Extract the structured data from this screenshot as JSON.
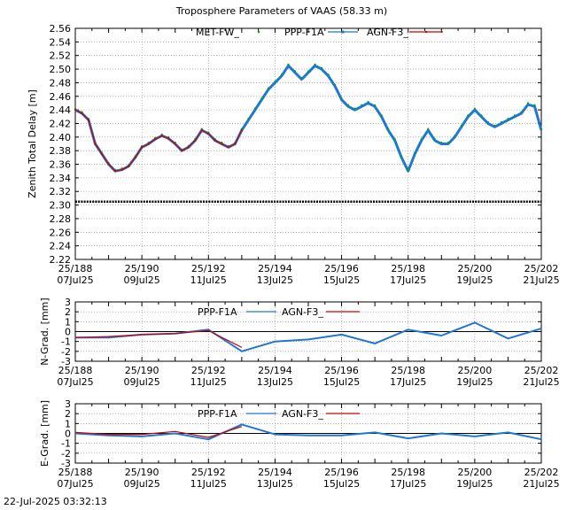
{
  "title": "Troposphere Parameters of VAAS (58.33 m)",
  "timestamp": "22-Jul-2025 03:32:13",
  "colors": {
    "met": "#00aa00",
    "ppp": "#1f77d4",
    "agn": "#cc0000",
    "grid": "#888888"
  },
  "chart_data": [
    {
      "type": "line",
      "id": "ztd",
      "ylabel": "Zenith Total Delay [m]",
      "xlim": [
        188,
        202
      ],
      "ylim": [
        2.22,
        2.56
      ],
      "yticks": [
        "2.56",
        "2.54",
        "2.52",
        "2.50",
        "2.48",
        "2.46",
        "2.44",
        "2.42",
        "2.40",
        "2.38",
        "2.36",
        "2.34",
        "2.32",
        "2.30",
        "2.28",
        "2.26",
        "2.24",
        "2.22"
      ],
      "xticks": [
        {
          "x": 188,
          "top": "25/188",
          "bottom": "07Jul25"
        },
        {
          "x": 190,
          "top": "25/190",
          "bottom": "09Jul25"
        },
        {
          "x": 192,
          "top": "25/192",
          "bottom": "11Jul25"
        },
        {
          "x": 194,
          "top": "25/194",
          "bottom": "13Jul25"
        },
        {
          "x": 196,
          "top": "25/196",
          "bottom": "15Jul25"
        },
        {
          "x": 198,
          "top": "25/198",
          "bottom": "17Jul25"
        },
        {
          "x": 200,
          "top": "25/200",
          "bottom": "19Jul25"
        },
        {
          "x": 202,
          "top": "25/202",
          "bottom": "21Jul25"
        }
      ],
      "legend": [
        "MET-FW_",
        "PPP-F1A",
        "AGN-F3_"
      ],
      "met_level": 2.305,
      "series": [
        {
          "name": "PPP-F1A",
          "points": [
            [
              188.0,
              2.44
            ],
            [
              188.2,
              2.435
            ],
            [
              188.4,
              2.425
            ],
            [
              188.6,
              2.39
            ],
            [
              188.8,
              2.375
            ],
            [
              189.0,
              2.36
            ],
            [
              189.2,
              2.35
            ],
            [
              189.4,
              2.352
            ],
            [
              189.6,
              2.357
            ],
            [
              189.8,
              2.37
            ],
            [
              190.0,
              2.385
            ],
            [
              190.2,
              2.39
            ],
            [
              190.4,
              2.397
            ],
            [
              190.6,
              2.402
            ],
            [
              190.8,
              2.398
            ],
            [
              191.0,
              2.39
            ],
            [
              191.2,
              2.38
            ],
            [
              191.4,
              2.385
            ],
            [
              191.6,
              2.395
            ],
            [
              191.8,
              2.41
            ],
            [
              192.0,
              2.405
            ],
            [
              192.2,
              2.395
            ],
            [
              192.4,
              2.39
            ],
            [
              192.6,
              2.385
            ],
            [
              192.8,
              2.39
            ],
            [
              193.0,
              2.41
            ],
            [
              193.2,
              2.425
            ],
            [
              193.4,
              2.44
            ],
            [
              193.6,
              2.455
            ],
            [
              193.8,
              2.47
            ],
            [
              194.0,
              2.48
            ],
            [
              194.2,
              2.49
            ],
            [
              194.4,
              2.505
            ],
            [
              194.6,
              2.495
            ],
            [
              194.8,
              2.485
            ],
            [
              195.0,
              2.495
            ],
            [
              195.2,
              2.505
            ],
            [
              195.4,
              2.5
            ],
            [
              195.6,
              2.49
            ],
            [
              195.8,
              2.475
            ],
            [
              196.0,
              2.455
            ],
            [
              196.2,
              2.445
            ],
            [
              196.4,
              2.44
            ],
            [
              196.6,
              2.445
            ],
            [
              196.8,
              2.45
            ],
            [
              197.0,
              2.445
            ],
            [
              197.2,
              2.43
            ],
            [
              197.4,
              2.41
            ],
            [
              197.6,
              2.395
            ],
            [
              197.8,
              2.37
            ],
            [
              198.0,
              2.35
            ],
            [
              198.2,
              2.375
            ],
            [
              198.4,
              2.395
            ],
            [
              198.6,
              2.41
            ],
            [
              198.8,
              2.395
            ],
            [
              199.0,
              2.39
            ],
            [
              199.2,
              2.39
            ],
            [
              199.4,
              2.4
            ],
            [
              199.6,
              2.415
            ],
            [
              199.8,
              2.43
            ],
            [
              200.0,
              2.44
            ],
            [
              200.2,
              2.43
            ],
            [
              200.4,
              2.42
            ],
            [
              200.6,
              2.415
            ],
            [
              200.8,
              2.42
            ],
            [
              201.0,
              2.425
            ],
            [
              201.2,
              2.43
            ],
            [
              201.4,
              2.435
            ],
            [
              201.6,
              2.448
            ],
            [
              201.8,
              2.445
            ],
            [
              202.0,
              2.41
            ]
          ]
        },
        {
          "name": "AGN-F3_",
          "points": [
            [
              188.0,
              2.44
            ],
            [
              188.2,
              2.435
            ],
            [
              188.4,
              2.425
            ],
            [
              188.6,
              2.39
            ],
            [
              188.8,
              2.375
            ],
            [
              189.0,
              2.36
            ],
            [
              189.2,
              2.35
            ],
            [
              189.4,
              2.352
            ],
            [
              189.6,
              2.357
            ],
            [
              189.8,
              2.37
            ],
            [
              190.0,
              2.385
            ],
            [
              190.2,
              2.39
            ],
            [
              190.4,
              2.397
            ],
            [
              190.6,
              2.402
            ],
            [
              190.8,
              2.398
            ],
            [
              191.0,
              2.39
            ],
            [
              191.2,
              2.38
            ],
            [
              191.4,
              2.385
            ],
            [
              191.6,
              2.395
            ],
            [
              191.8,
              2.41
            ],
            [
              192.0,
              2.405
            ],
            [
              192.2,
              2.395
            ],
            [
              192.4,
              2.39
            ],
            [
              192.6,
              2.385
            ],
            [
              192.8,
              2.39
            ],
            [
              193.0,
              2.41
            ]
          ]
        }
      ]
    },
    {
      "type": "line",
      "id": "ngrad",
      "ylabel": "N-Grad. [mm]",
      "xlim": [
        188,
        202
      ],
      "ylim": [
        -3,
        3
      ],
      "yticks": [
        "3",
        "2",
        "1",
        "0",
        "-1",
        "-2",
        "-3"
      ],
      "xticks": [
        {
          "x": 188,
          "top": "25/188",
          "bottom": "07Jul25"
        },
        {
          "x": 190,
          "top": "25/190",
          "bottom": "09Jul25"
        },
        {
          "x": 192,
          "top": "25/192",
          "bottom": "11Jul25"
        },
        {
          "x": 194,
          "top": "25/194",
          "bottom": "13Jul25"
        },
        {
          "x": 196,
          "top": "25/196",
          "bottom": "15Jul25"
        },
        {
          "x": 198,
          "top": "25/198",
          "bottom": "17Jul25"
        },
        {
          "x": 200,
          "top": "25/200",
          "bottom": "19Jul25"
        },
        {
          "x": 202,
          "top": "25/202",
          "bottom": "21Jul25"
        }
      ],
      "legend": [
        "PPP-F1A",
        "AGN-F3_"
      ],
      "series": [
        {
          "name": "PPP-F1A",
          "points": [
            [
              188,
              -0.6
            ],
            [
              189,
              -0.6
            ],
            [
              190,
              -0.3
            ],
            [
              191,
              -0.2
            ],
            [
              192,
              0.2
            ],
            [
              193,
              -2.0
            ],
            [
              194,
              -1.0
            ],
            [
              195,
              -0.8
            ],
            [
              196,
              -0.3
            ],
            [
              197,
              -1.2
            ],
            [
              198,
              0.2
            ],
            [
              199,
              -0.4
            ],
            [
              200,
              0.9
            ],
            [
              201,
              -0.7
            ],
            [
              202,
              0.3
            ]
          ]
        },
        {
          "name": "AGN-F3_",
          "points": [
            [
              188,
              -0.6
            ],
            [
              189,
              -0.5
            ],
            [
              190,
              -0.3
            ],
            [
              191,
              -0.2
            ],
            [
              192,
              0.1
            ],
            [
              193,
              -1.6
            ]
          ]
        }
      ]
    },
    {
      "type": "line",
      "id": "egrad",
      "ylabel": "E-Grad. [mm]",
      "xlim": [
        188,
        202
      ],
      "ylim": [
        -3,
        3
      ],
      "yticks": [
        "3",
        "2",
        "1",
        "0",
        "-1",
        "-2",
        "-3"
      ],
      "xticks": [
        {
          "x": 188,
          "top": "25/188",
          "bottom": "07Jul25"
        },
        {
          "x": 190,
          "top": "25/190",
          "bottom": "09Jul25"
        },
        {
          "x": 192,
          "top": "25/192",
          "bottom": "11Jul25"
        },
        {
          "x": 194,
          "top": "25/194",
          "bottom": "13Jul25"
        },
        {
          "x": 196,
          "top": "25/196",
          "bottom": "15Jul25"
        },
        {
          "x": 198,
          "top": "25/198",
          "bottom": "17Jul25"
        },
        {
          "x": 200,
          "top": "25/200",
          "bottom": "19Jul25"
        },
        {
          "x": 202,
          "top": "25/202",
          "bottom": "21Jul25"
        }
      ],
      "legend": [
        "PPP-F1A",
        "AGN-F3_"
      ],
      "series": [
        {
          "name": "PPP-F1A",
          "points": [
            [
              188,
              0.0
            ],
            [
              189,
              -0.2
            ],
            [
              190,
              -0.3
            ],
            [
              191,
              0.0
            ],
            [
              192,
              -0.6
            ],
            [
              193,
              0.9
            ],
            [
              194,
              -0.1
            ],
            [
              195,
              -0.2
            ],
            [
              196,
              -0.2
            ],
            [
              197,
              0.1
            ],
            [
              198,
              -0.5
            ],
            [
              199,
              0.0
            ],
            [
              200,
              -0.3
            ],
            [
              201,
              0.1
            ],
            [
              202,
              -0.6
            ]
          ]
        },
        {
          "name": "AGN-F3_",
          "points": [
            [
              188,
              0.1
            ],
            [
              189,
              -0.1
            ],
            [
              190,
              -0.1
            ],
            [
              191,
              0.2
            ],
            [
              192,
              -0.4
            ],
            [
              193,
              0.7
            ]
          ]
        }
      ]
    }
  ]
}
